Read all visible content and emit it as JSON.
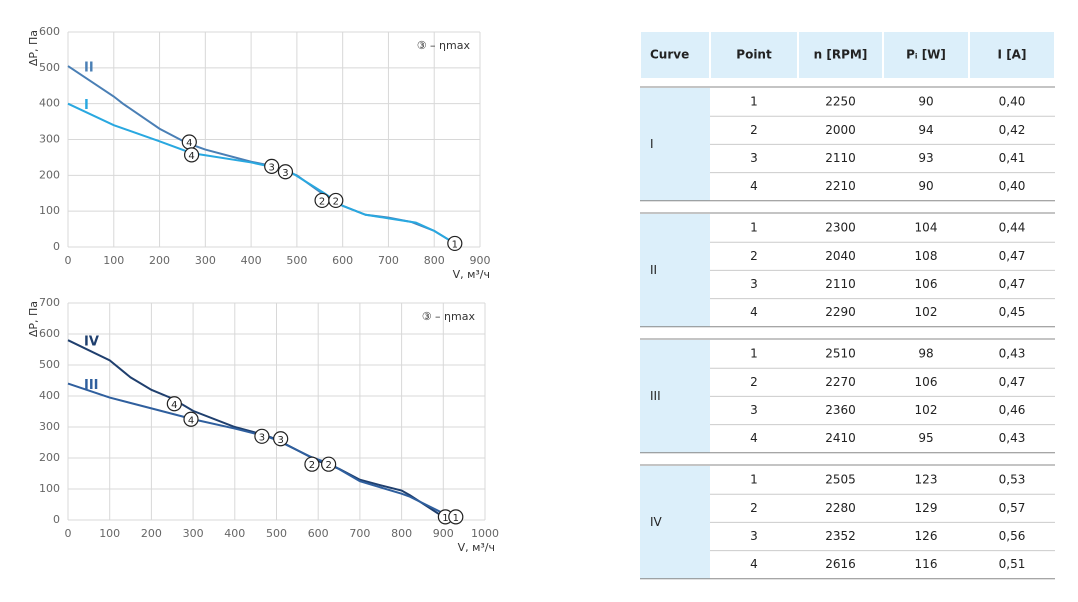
{
  "chart_data": [
    {
      "type": "line",
      "xlabel": "V, м³/ч",
      "ylabel": "ΔP, Па",
      "annotation": "③ – ηmax",
      "xlim": [
        0,
        900
      ],
      "xticks": [
        0,
        100,
        200,
        300,
        400,
        500,
        600,
        700,
        800,
        900
      ],
      "ylim": [
        0,
        600
      ],
      "yticks": [
        0,
        100,
        200,
        300,
        400,
        500,
        600
      ],
      "grid": true,
      "series": [
        {
          "name": "II",
          "color": "#4a7fb5",
          "x": [
            0,
            100,
            120,
            200,
            260,
            300,
            400,
            450,
            500,
            560,
            600,
            650,
            700,
            750,
            800,
            845
          ],
          "values": [
            505,
            420,
            400,
            330,
            290,
            272,
            238,
            225,
            200,
            145,
            115,
            90,
            82,
            70,
            45,
            10
          ]
        },
        {
          "name": "I",
          "color": "#29a8e0",
          "x": [
            0,
            100,
            200,
            270,
            300,
            400,
            480,
            560,
            600,
            650,
            700,
            760,
            800,
            845
          ],
          "values": [
            400,
            340,
            295,
            262,
            256,
            236,
            214,
            150,
            115,
            90,
            80,
            68,
            45,
            10
          ]
        }
      ],
      "points": [
        {
          "label": "4",
          "x": 265,
          "y": 293
        },
        {
          "label": "4",
          "x": 270,
          "y": 257
        },
        {
          "label": "3",
          "x": 445,
          "y": 225
        },
        {
          "label": "3",
          "x": 475,
          "y": 210
        },
        {
          "label": "2",
          "x": 555,
          "y": 130
        },
        {
          "label": "2",
          "x": 585,
          "y": 130
        },
        {
          "label": "1",
          "x": 845,
          "y": 10
        }
      ]
    },
    {
      "type": "line",
      "xlabel": "V, м³/ч",
      "ylabel": "ΔP, Па",
      "annotation": "③ – ηmax",
      "xlim": [
        0,
        1000
      ],
      "xticks": [
        0,
        100,
        200,
        300,
        400,
        500,
        600,
        700,
        800,
        900,
        1000
      ],
      "ylim": [
        0,
        700
      ],
      "yticks": [
        0,
        100,
        200,
        300,
        400,
        500,
        600,
        700
      ],
      "grid": true,
      "series": [
        {
          "name": "IV",
          "color": "#1f3f6e",
          "x": [
            0,
            100,
            150,
            200,
            250,
            300,
            400,
            470,
            500,
            600,
            650,
            700,
            750,
            800,
            820,
            900
          ],
          "values": [
            580,
            515,
            460,
            420,
            392,
            352,
            300,
            275,
            260,
            190,
            165,
            130,
            112,
            95,
            80,
            10
          ]
        },
        {
          "name": "III",
          "color": "#2f5f9e",
          "x": [
            0,
            100,
            200,
            300,
            400,
            480,
            500,
            580,
            630,
            700,
            800,
            820,
            925
          ],
          "values": [
            440,
            395,
            360,
            325,
            295,
            268,
            258,
            205,
            180,
            125,
            85,
            75,
            5
          ]
        }
      ],
      "points": [
        {
          "label": "4",
          "x": 255,
          "y": 375
        },
        {
          "label": "4",
          "x": 295,
          "y": 325
        },
        {
          "label": "3",
          "x": 465,
          "y": 270
        },
        {
          "label": "3",
          "x": 510,
          "y": 262
        },
        {
          "label": "2",
          "x": 585,
          "y": 180
        },
        {
          "label": "2",
          "x": 625,
          "y": 180
        },
        {
          "label": "1",
          "x": 905,
          "y": 10
        },
        {
          "label": "1",
          "x": 930,
          "y": 10
        }
      ]
    }
  ],
  "table": {
    "header": [
      "Curve",
      "Point",
      "n [RPM]",
      "Pᵢ [W]",
      "I [A]"
    ],
    "groups": [
      {
        "curve": "I",
        "rows": [
          [
            "1",
            "2250",
            "90",
            "0,40"
          ],
          [
            "2",
            "2000",
            "94",
            "0,42"
          ],
          [
            "3",
            "2110",
            "93",
            "0,41"
          ],
          [
            "4",
            "2210",
            "90",
            "0,40"
          ]
        ]
      },
      {
        "curve": "II",
        "rows": [
          [
            "1",
            "2300",
            "104",
            "0,44"
          ],
          [
            "2",
            "2040",
            "108",
            "0,47"
          ],
          [
            "3",
            "2110",
            "106",
            "0,47"
          ],
          [
            "4",
            "2290",
            "102",
            "0,45"
          ]
        ]
      },
      {
        "curve": "III",
        "rows": [
          [
            "1",
            "2510",
            "98",
            "0,43"
          ],
          [
            "2",
            "2270",
            "106",
            "0,47"
          ],
          [
            "3",
            "2360",
            "102",
            "0,46"
          ],
          [
            "4",
            "2410",
            "95",
            "0,43"
          ]
        ]
      },
      {
        "curve": "IV",
        "rows": [
          [
            "1",
            "2505",
            "123",
            "0,53"
          ],
          [
            "2",
            "2280",
            "129",
            "0,57"
          ],
          [
            "3",
            "2352",
            "126",
            "0,56"
          ],
          [
            "4",
            "2616",
            "116",
            "0,51"
          ]
        ]
      }
    ]
  }
}
